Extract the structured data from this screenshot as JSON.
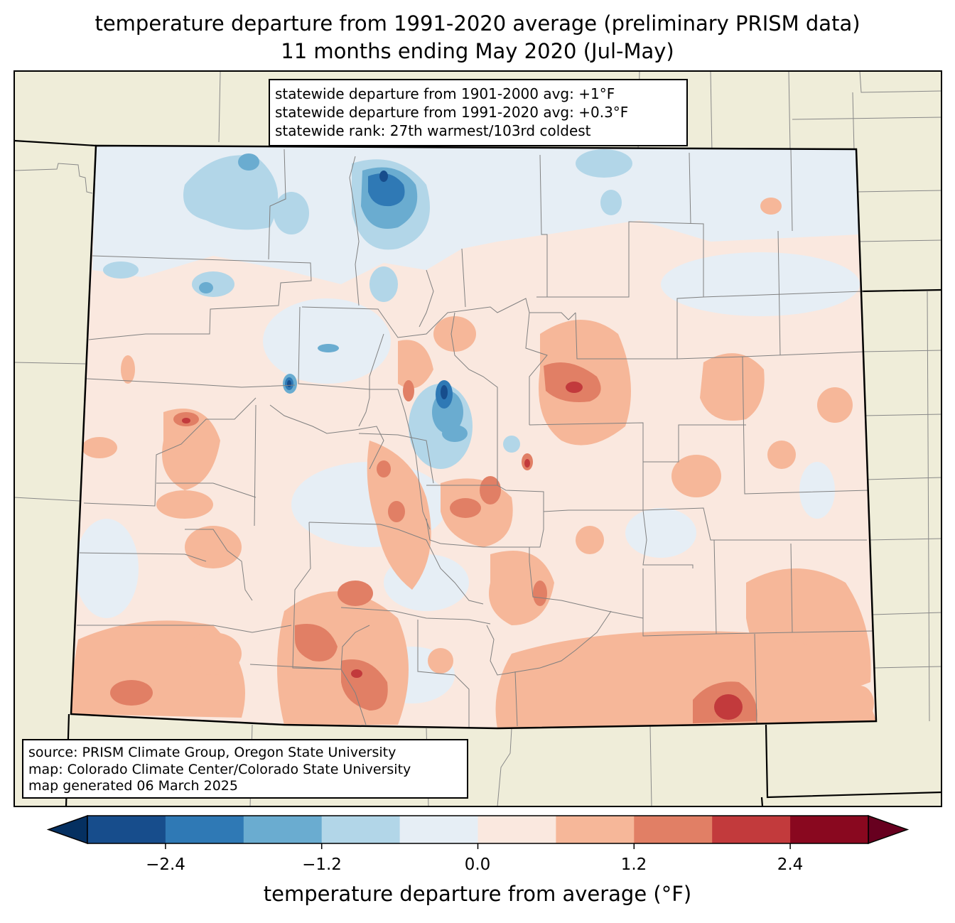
{
  "title": {
    "line1": "temperature departure from 1991-2020 average (preliminary PRISM data)",
    "line2": "11 months ending May 2020 (Jul-May)"
  },
  "stats_box": {
    "line1": "statewide departure from 1901-2000 avg: +1°F",
    "line2": "statewide departure from 1991-2020 avg: +0.3°F",
    "line3": "statewide rank: 27th warmest/103rd coldest"
  },
  "source_box": {
    "line1": "source: PRISM Climate Group, Oregon State University",
    "line2": "map: Colorado Climate Center/Colorado State University",
    "line3": "map generated 06 March 2025"
  },
  "colorbar": {
    "title": "temperature departure from average (°F)",
    "tick_labels": [
      "−2.4",
      "−1.2",
      "0.0",
      "1.2",
      "2.4"
    ],
    "tick_values": [
      -2.4,
      -1.2,
      0.0,
      1.2,
      2.4
    ],
    "bin_edges": [
      -3.0,
      -2.4,
      -1.8,
      -1.2,
      -0.6,
      0.0,
      0.6,
      1.2,
      1.8,
      2.4,
      3.0
    ],
    "colors": [
      "#053061",
      "#174d8c",
      "#2f79b5",
      "#6aacd0",
      "#b2d6e8",
      "#e6eef5",
      "#fae8df",
      "#f6b799",
      "#e17f65",
      "#c23a3c",
      "#89081f",
      "#67001f"
    ]
  },
  "map": {
    "background_color": "#efedd9",
    "state_fill": "#fae8df"
  }
}
